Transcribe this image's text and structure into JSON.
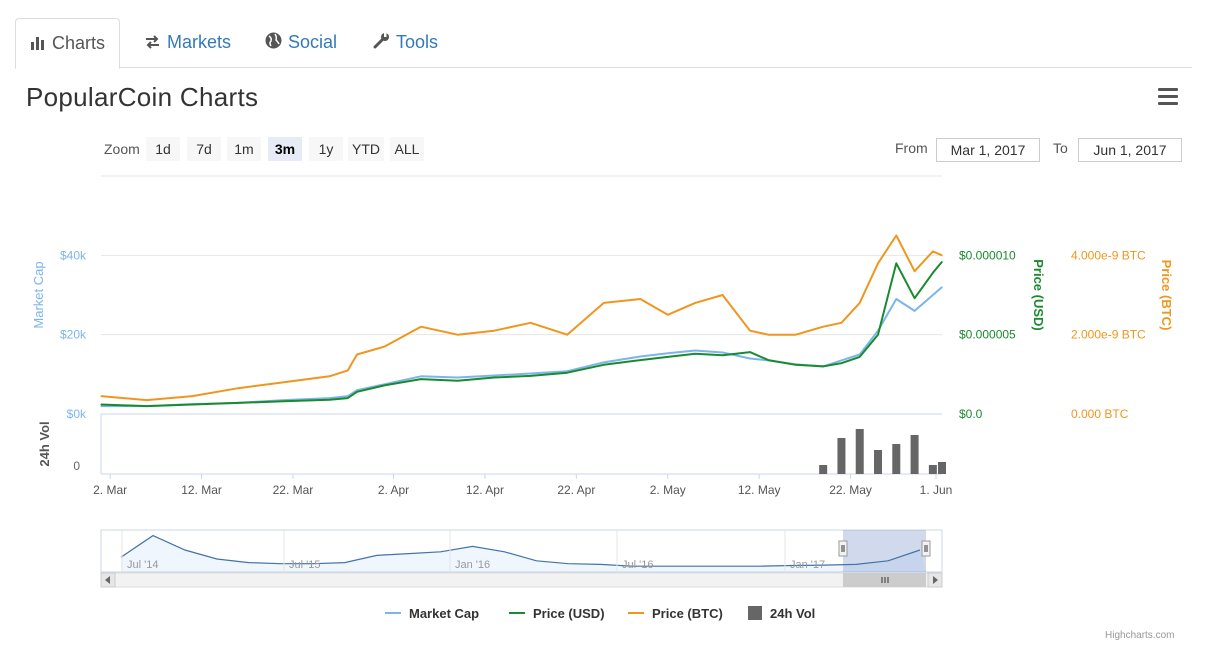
{
  "tabs": [
    {
      "label": "Charts",
      "icon": "bar-chart-icon"
    },
    {
      "label": "Markets",
      "icon": "exchange-arrows-icon"
    },
    {
      "label": "Social",
      "icon": "globe-icon"
    },
    {
      "label": "Tools",
      "icon": "wrench-icon"
    }
  ],
  "title": "PopularCoin Charts",
  "menu_icon": "hamburger-menu-icon",
  "zoom": {
    "label": "Zoom",
    "buttons": [
      "1d",
      "7d",
      "1m",
      "3m",
      "1y",
      "YTD",
      "ALL"
    ],
    "selected": "3m"
  },
  "range": {
    "from_label": "From",
    "from_value": "Mar 1, 2017",
    "to_label": "To",
    "to_value": "Jun 1, 2017"
  },
  "credits": "Highcharts.com",
  "colors": {
    "market_cap": "#7cb5ec",
    "price_usd": "#1a8a2e",
    "price_btc": "#f0961e",
    "volume": "#666666"
  },
  "chart_data": {
    "type": "line",
    "x": [
      "2017-03-01",
      "2017-03-06",
      "2017-03-11",
      "2017-03-16",
      "2017-03-21",
      "2017-03-26",
      "2017-03-28",
      "2017-03-29",
      "2017-04-01",
      "2017-04-05",
      "2017-04-09",
      "2017-04-13",
      "2017-04-17",
      "2017-04-21",
      "2017-04-25",
      "2017-04-29",
      "2017-05-02",
      "2017-05-05",
      "2017-05-08",
      "2017-05-11",
      "2017-05-13",
      "2017-05-16",
      "2017-05-19",
      "2017-05-21",
      "2017-05-23",
      "2017-05-25",
      "2017-05-27",
      "2017-05-29",
      "2017-05-31",
      "2017-06-01"
    ],
    "series": [
      {
        "name": "Market Cap",
        "axis": "Market Cap",
        "values": [
          2000,
          2000,
          2500,
          2800,
          3500,
          4000,
          4500,
          6000,
          7500,
          9500,
          9200,
          9700,
          10200,
          10800,
          13000,
          14500,
          15300,
          16000,
          15500,
          14000,
          13500,
          12500,
          12000,
          13500,
          15000,
          21000,
          29000,
          26000,
          30000,
          32000
        ]
      },
      {
        "name": "Price (USD)",
        "axis": "Price (USD)",
        "values": [
          6e-07,
          5e-07,
          6e-07,
          7e-07,
          8e-07,
          9e-07,
          1e-06,
          1.4e-06,
          1.8e-06,
          2.2e-06,
          2.1e-06,
          2.3e-06,
          2.4e-06,
          2.6e-06,
          3.1e-06,
          3.4e-06,
          3.6e-06,
          3.8e-06,
          3.7e-06,
          3.9e-06,
          3.4e-06,
          3.1e-06,
          3e-06,
          3.2e-06,
          3.6e-06,
          5e-06,
          9.5e-06,
          7.3e-06,
          8.9e-06,
          9.6e-06
        ]
      },
      {
        "name": "Price (BTC)",
        "axis": "Price (BTC)",
        "values": [
          4.5e-10,
          3.5e-10,
          4.5e-10,
          6.5e-10,
          8e-10,
          9.5e-10,
          1.1e-09,
          1.5e-09,
          1.7e-09,
          2.2e-09,
          2e-09,
          2.1e-09,
          2.3e-09,
          2e-09,
          2.8e-09,
          2.9e-09,
          2.5e-09,
          2.8e-09,
          3e-09,
          2.1e-09,
          2e-09,
          2e-09,
          2.2e-09,
          2.3e-09,
          2.8e-09,
          3.8e-09,
          4.5e-09,
          3.6e-09,
          4.1e-09,
          4e-09
        ]
      },
      {
        "name": "24h Vol",
        "axis": "24h Vol",
        "values": [
          0,
          0,
          0,
          0,
          0,
          0,
          0,
          0,
          0,
          0,
          0,
          0,
          0,
          0,
          0,
          0,
          0,
          0,
          0,
          0,
          0,
          0,
          0.15,
          0.6,
          0.75,
          0.4,
          0.5,
          0.65,
          0.15,
          0.2
        ]
      }
    ],
    "x_ticks": [
      "2. Mar",
      "12. Mar",
      "22. Mar",
      "2. Apr",
      "12. Apr",
      "22. Apr",
      "2. May",
      "12. May",
      "22. May",
      "1. Jun"
    ],
    "y_axes": {
      "market_cap": {
        "label": "Market Cap",
        "ticks": [
          "$0k",
          "$20k",
          "$40k"
        ],
        "range": [
          0,
          60000
        ]
      },
      "price_usd": {
        "label": "Price (USD)",
        "ticks": [
          "$0.0",
          "$0.000005",
          "$0.000010"
        ],
        "range": [
          0,
          1.5e-05
        ]
      },
      "price_btc": {
        "label": "Price (BTC)",
        "ticks": [
          "0.000 BTC",
          "2.000e-9 BTC",
          "4.000e-9 BTC"
        ],
        "range": [
          0,
          6e-09
        ]
      },
      "volume": {
        "label": "24h Vol",
        "ticks": [
          "0"
        ]
      }
    },
    "navigator": {
      "x_ticks": [
        "Jul '14",
        "Jul '15",
        "Jan '16",
        "Jul '16",
        "Jan '17"
      ],
      "series": [
        {
          "name": "Market Cap",
          "values": [
            0.3,
            0.9,
            0.5,
            0.25,
            0.15,
            0.12,
            0.12,
            0.15,
            0.35,
            0.4,
            0.45,
            0.6,
            0.45,
            0.2,
            0.12,
            0.1,
            0.05,
            0.05,
            0.05,
            0.05,
            0.05,
            0.07,
            0.08,
            0.1,
            0.2,
            0.5
          ]
        }
      ]
    },
    "legend_position": "bottom-center",
    "grid": true
  }
}
